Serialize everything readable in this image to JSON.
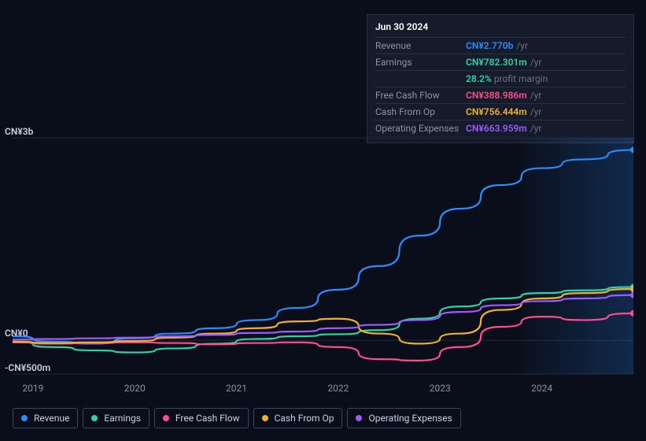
{
  "tooltip": {
    "title": "Jun 30 2024",
    "rows": [
      {
        "label": "Revenue",
        "value": "CN¥2.770b",
        "suffix": "/yr",
        "color": "#2a8cff"
      },
      {
        "label": "Earnings",
        "value": "CN¥782.301m",
        "suffix": "/yr",
        "color": "#2ed4a7",
        "margin_pct": "28.2%",
        "margin_text": "profit margin"
      },
      {
        "label": "Free Cash Flow",
        "value": "CN¥388.986m",
        "suffix": "/yr",
        "color": "#ff4d8d"
      },
      {
        "label": "Cash From Op",
        "value": "CN¥756.444m",
        "suffix": "/yr",
        "color": "#f0b132"
      },
      {
        "label": "Operating Expenses",
        "value": "CN¥663.959m",
        "suffix": "/yr",
        "color": "#9d5cff"
      }
    ]
  },
  "chart": {
    "type": "line",
    "background_color": "#0a0e1a",
    "plot_bg_gradient": [
      "rgba(16,24,44,0.0)",
      "rgba(16,24,44,1)"
    ],
    "grid_color": "#232a3d",
    "text_color": "#8a94a6",
    "axis_label_color": "#c8d0e0",
    "y_min_b": -0.5,
    "y_max_b": 3.0,
    "y_ticks": [
      {
        "value": 3.0,
        "label": "CN¥3b"
      },
      {
        "value": 0.0,
        "label": "CN¥0"
      },
      {
        "value": -0.5,
        "label": "-CN¥500m"
      }
    ],
    "x_min_year": 2018.8,
    "x_max_year": 2024.9,
    "x_ticks": [
      2019,
      2020,
      2021,
      2022,
      2023,
      2024
    ],
    "highlight_from_year": 2023.8,
    "highlight_to_year": 2024.9,
    "highlight_gradient": [
      "rgba(42,140,255,0.02)",
      "rgba(42,140,255,0.22)"
    ],
    "line_width": 2.2,
    "series": [
      {
        "name": "Revenue",
        "color": "#2a8cff",
        "points": [
          [
            2018.8,
            0.06
          ],
          [
            2019.2,
            -0.02
          ],
          [
            2019.6,
            -0.05
          ],
          [
            2020.0,
            0.03
          ],
          [
            2020.4,
            0.1
          ],
          [
            2020.8,
            0.18
          ],
          [
            2021.2,
            0.3
          ],
          [
            2021.6,
            0.48
          ],
          [
            2022.0,
            0.75
          ],
          [
            2022.4,
            1.1
          ],
          [
            2022.8,
            1.55
          ],
          [
            2023.2,
            1.95
          ],
          [
            2023.6,
            2.3
          ],
          [
            2024.0,
            2.55
          ],
          [
            2024.4,
            2.68
          ],
          [
            2024.9,
            2.82
          ]
        ]
      },
      {
        "name": "Earnings",
        "color": "#2ed4a7",
        "points": [
          [
            2018.8,
            -0.02
          ],
          [
            2019.2,
            -0.1
          ],
          [
            2019.6,
            -0.15
          ],
          [
            2020.0,
            -0.18
          ],
          [
            2020.4,
            -0.12
          ],
          [
            2020.8,
            -0.05
          ],
          [
            2021.2,
            0.02
          ],
          [
            2021.6,
            0.06
          ],
          [
            2022.0,
            0.09
          ],
          [
            2022.4,
            0.15
          ],
          [
            2022.8,
            0.32
          ],
          [
            2023.2,
            0.5
          ],
          [
            2023.6,
            0.62
          ],
          [
            2024.0,
            0.7
          ],
          [
            2024.4,
            0.74
          ],
          [
            2024.9,
            0.79
          ]
        ]
      },
      {
        "name": "Free Cash Flow",
        "color": "#ff4d8d",
        "points": [
          [
            2018.8,
            -0.03
          ],
          [
            2019.2,
            -0.05
          ],
          [
            2019.6,
            -0.04
          ],
          [
            2020.0,
            -0.03
          ],
          [
            2020.4,
            -0.04
          ],
          [
            2020.8,
            -0.06
          ],
          [
            2021.2,
            -0.04
          ],
          [
            2021.6,
            -0.03
          ],
          [
            2022.0,
            -0.1
          ],
          [
            2022.4,
            -0.28
          ],
          [
            2022.8,
            -0.3
          ],
          [
            2023.2,
            -0.1
          ],
          [
            2023.6,
            0.2
          ],
          [
            2024.0,
            0.35
          ],
          [
            2024.4,
            0.3
          ],
          [
            2024.9,
            0.4
          ]
        ]
      },
      {
        "name": "Cash From Op",
        "color": "#f0b132",
        "points": [
          [
            2018.8,
            -0.02
          ],
          [
            2019.2,
            -0.04
          ],
          [
            2019.6,
            -0.03
          ],
          [
            2020.0,
            -0.01
          ],
          [
            2020.4,
            0.04
          ],
          [
            2020.8,
            0.1
          ],
          [
            2021.2,
            0.18
          ],
          [
            2021.6,
            0.28
          ],
          [
            2022.0,
            0.32
          ],
          [
            2022.4,
            0.1
          ],
          [
            2022.8,
            -0.05
          ],
          [
            2023.2,
            0.1
          ],
          [
            2023.6,
            0.45
          ],
          [
            2024.0,
            0.62
          ],
          [
            2024.4,
            0.7
          ],
          [
            2024.9,
            0.76
          ]
        ]
      },
      {
        "name": "Operating Expenses",
        "color": "#9d5cff",
        "points": [
          [
            2018.8,
            0.01
          ],
          [
            2019.2,
            0.02
          ],
          [
            2019.6,
            0.03
          ],
          [
            2020.0,
            0.04
          ],
          [
            2020.4,
            0.06
          ],
          [
            2020.8,
            0.08
          ],
          [
            2021.2,
            0.11
          ],
          [
            2021.6,
            0.13
          ],
          [
            2022.0,
            0.18
          ],
          [
            2022.4,
            0.23
          ],
          [
            2022.8,
            0.3
          ],
          [
            2023.2,
            0.42
          ],
          [
            2023.6,
            0.52
          ],
          [
            2024.0,
            0.58
          ],
          [
            2024.4,
            0.62
          ],
          [
            2024.9,
            0.67
          ]
        ]
      }
    ]
  },
  "legend": [
    {
      "label": "Revenue",
      "color": "#2a8cff"
    },
    {
      "label": "Earnings",
      "color": "#2ed4a7"
    },
    {
      "label": "Free Cash Flow",
      "color": "#ff4d8d"
    },
    {
      "label": "Cash From Op",
      "color": "#f0b132"
    },
    {
      "label": "Operating Expenses",
      "color": "#9d5cff"
    }
  ]
}
